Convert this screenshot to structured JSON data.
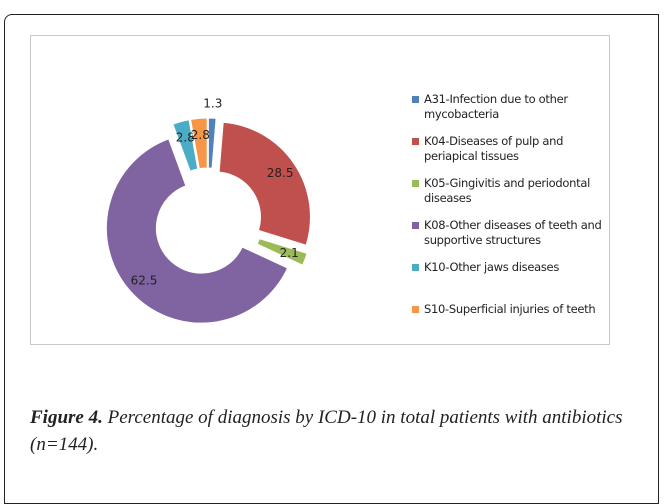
{
  "chart_data": {
    "type": "pie",
    "categories": [
      "A31-Infection due to other mycobacteria",
      "K04-Diseases of pulp and periapical tissues",
      "K05-Gingivitis and periodontal diseases",
      "K08-Other diseases of teeth and supportive structures",
      "K10-Other jaws diseases",
      "S10-Superficial injuries of teeth"
    ],
    "values": [
      1.3,
      28.5,
      2.1,
      62.5,
      2.8,
      2.8
    ],
    "colors": [
      "#4f81bd",
      "#c0504d",
      "#9bbb59",
      "#8064a2",
      "#4bacc6",
      "#f79646"
    ],
    "donut": true,
    "exploded": true,
    "legend": "right"
  },
  "caption": {
    "label": "Figure 4.",
    "text": "Percentage of diagnosis by ICD-10 in total patients with antibiotics (n=144)."
  }
}
